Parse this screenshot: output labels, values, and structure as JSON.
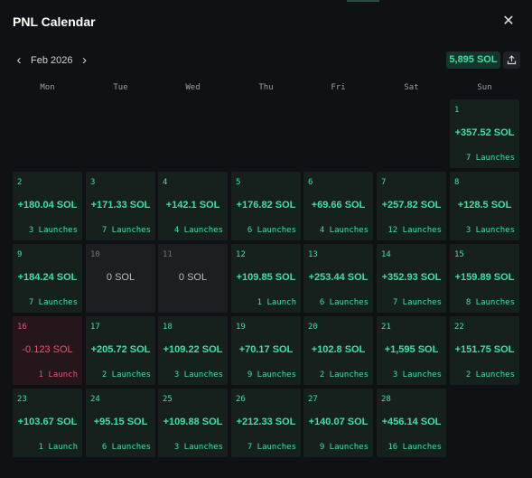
{
  "header": {
    "title": "PNL Calendar",
    "close_icon": "close-icon"
  },
  "nav": {
    "month": "Feb 2026",
    "prev_icon": "chevron-left-icon",
    "next_icon": "chevron-right-icon"
  },
  "total": {
    "value": "5,895 SOL"
  },
  "share": {
    "icon": "share-icon"
  },
  "colors": {
    "profit": "#3fe0a4",
    "loss": "#ef4f74",
    "neutral": "#b8bcc2",
    "background": "#101114"
  },
  "weekdays": [
    "Mon",
    "Tue",
    "Wed",
    "Thu",
    "Fri",
    "Sat",
    "Sun"
  ],
  "days": [
    {
      "day": "1",
      "pnl": "+357.52 SOL",
      "launches": "7 Launches",
      "status": "profit"
    },
    {
      "day": "2",
      "pnl": "+180.04 SOL",
      "launches": "3 Launches",
      "status": "profit"
    },
    {
      "day": "3",
      "pnl": "+171.33 SOL",
      "launches": "7 Launches",
      "status": "profit"
    },
    {
      "day": "4",
      "pnl": "+142.1 SOL",
      "launches": "4 Launches",
      "status": "profit"
    },
    {
      "day": "5",
      "pnl": "+176.82 SOL",
      "launches": "6 Launches",
      "status": "profit"
    },
    {
      "day": "6",
      "pnl": "+69.66 SOL",
      "launches": "4 Launches",
      "status": "profit"
    },
    {
      "day": "7",
      "pnl": "+257.82 SOL",
      "launches": "12 Launches",
      "status": "profit"
    },
    {
      "day": "8",
      "pnl": "+128.5 SOL",
      "launches": "3 Launches",
      "status": "profit"
    },
    {
      "day": "9",
      "pnl": "+184.24 SOL",
      "launches": "7 Launches",
      "status": "profit"
    },
    {
      "day": "10",
      "pnl": "0 SOL",
      "launches": "",
      "status": "neutral"
    },
    {
      "day": "11",
      "pnl": "0 SOL",
      "launches": "",
      "status": "neutral"
    },
    {
      "day": "12",
      "pnl": "+109.85 SOL",
      "launches": "1 Launch",
      "status": "profit"
    },
    {
      "day": "13",
      "pnl": "+253.44 SOL",
      "launches": "6 Launches",
      "status": "profit"
    },
    {
      "day": "14",
      "pnl": "+352.93 SOL",
      "launches": "7 Launches",
      "status": "profit"
    },
    {
      "day": "15",
      "pnl": "+159.89 SOL",
      "launches": "8 Launches",
      "status": "profit"
    },
    {
      "day": "16",
      "pnl": "-0.123 SOL",
      "launches": "1 Launch",
      "status": "loss"
    },
    {
      "day": "17",
      "pnl": "+205.72 SOL",
      "launches": "2 Launches",
      "status": "profit"
    },
    {
      "day": "18",
      "pnl": "+109.22 SOL",
      "launches": "3 Launches",
      "status": "profit"
    },
    {
      "day": "19",
      "pnl": "+70.17 SOL",
      "launches": "9 Launches",
      "status": "profit"
    },
    {
      "day": "20",
      "pnl": "+102.8 SOL",
      "launches": "2 Launches",
      "status": "profit"
    },
    {
      "day": "21",
      "pnl": "+1,595 SOL",
      "launches": "3 Launches",
      "status": "profit"
    },
    {
      "day": "22",
      "pnl": "+151.75 SOL",
      "launches": "2 Launches",
      "status": "profit"
    },
    {
      "day": "23",
      "pnl": "+103.67 SOL",
      "launches": "1 Launch",
      "status": "profit"
    },
    {
      "day": "24",
      "pnl": "+95.15 SOL",
      "launches": "6 Launches",
      "status": "profit"
    },
    {
      "day": "25",
      "pnl": "+109.88 SOL",
      "launches": "3 Launches",
      "status": "profit"
    },
    {
      "day": "26",
      "pnl": "+212.33 SOL",
      "launches": "7 Launches",
      "status": "profit"
    },
    {
      "day": "27",
      "pnl": "+140.07 SOL",
      "launches": "9 Launches",
      "status": "profit"
    },
    {
      "day": "28",
      "pnl": "+456.14 SOL",
      "launches": "16 Launches",
      "status": "profit"
    }
  ]
}
